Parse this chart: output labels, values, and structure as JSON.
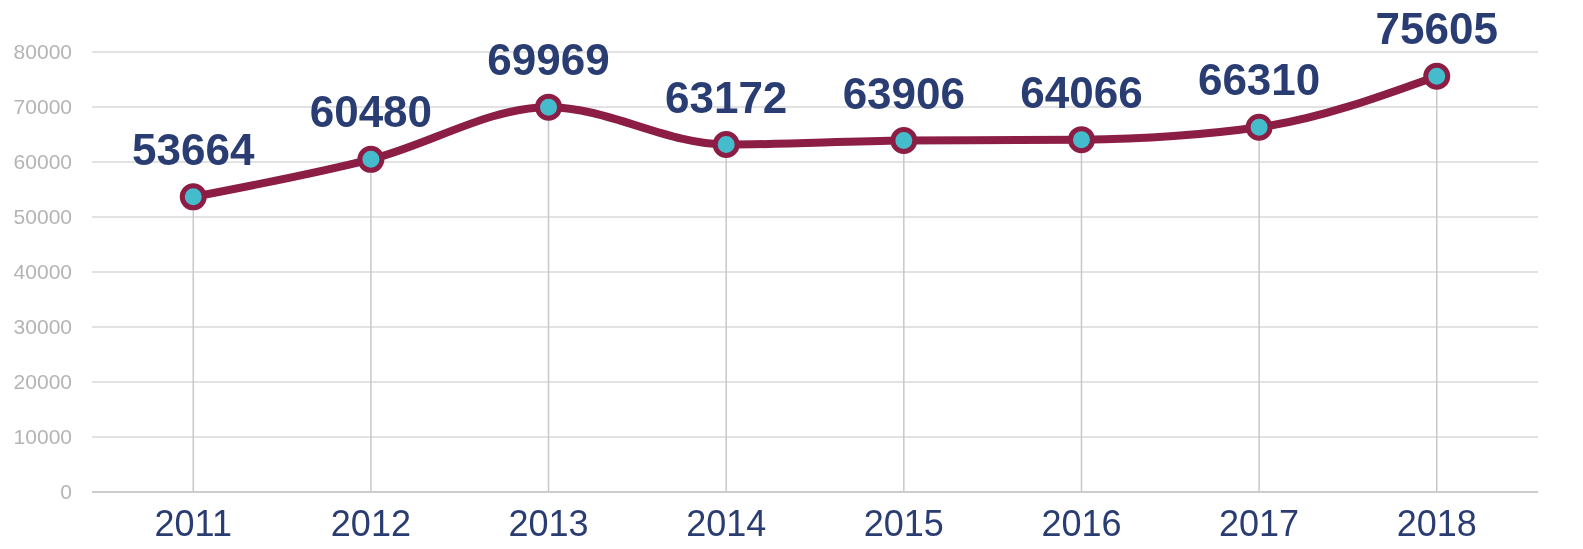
{
  "chart_data": {
    "type": "line",
    "categories": [
      "2011",
      "2012",
      "2013",
      "2014",
      "2015",
      "2016",
      "2017",
      "2018"
    ],
    "series": [
      {
        "color": "#8c1d45",
        "values": [
          53664,
          60480,
          69969,
          63172,
          63906,
          64066,
          66310,
          75605
        ]
      }
    ],
    "ylim": [
      0,
      80000
    ],
    "yticks": [
      0,
      10000,
      20000,
      30000,
      40000,
      50000,
      60000,
      70000,
      80000
    ],
    "grid": true,
    "marker": "circle",
    "line_style": "solid",
    "data_labels": true
  }
}
